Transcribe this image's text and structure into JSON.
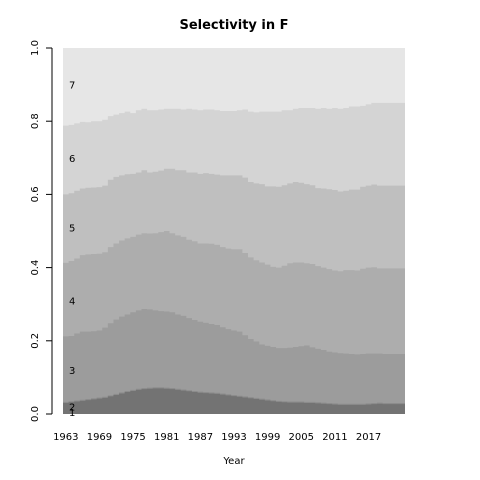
{
  "chart_data": {
    "type": "area",
    "stacked": true,
    "step": true,
    "title": "Selectivity in F",
    "xlabel": "Year",
    "ylabel": "",
    "xlim": [
      1963,
      2024
    ],
    "ylim": [
      0,
      1
    ],
    "x_ticks": [
      1963,
      1969,
      1975,
      1981,
      1987,
      1993,
      1999,
      2005,
      2011,
      2017
    ],
    "y_ticks": [
      "0.0",
      "0.2",
      "0.4",
      "0.6",
      "0.8",
      "1.0"
    ],
    "grid": false,
    "legend": "none",
    "years": [
      1963,
      1964,
      1965,
      1966,
      1967,
      1968,
      1969,
      1970,
      1971,
      1972,
      1973,
      1974,
      1975,
      1976,
      1977,
      1978,
      1979,
      1980,
      1981,
      1982,
      1983,
      1984,
      1985,
      1986,
      1987,
      1988,
      1989,
      1990,
      1991,
      1992,
      1993,
      1994,
      1995,
      1996,
      1997,
      1998,
      1999,
      2000,
      2001,
      2002,
      2003,
      2004,
      2005,
      2006,
      2007,
      2008,
      2009,
      2010,
      2011,
      2012,
      2013,
      2014,
      2015,
      2016,
      2017,
      2018,
      2019,
      2020,
      2021,
      2022,
      2023
    ],
    "cumulative_series": [
      {
        "name": "1",
        "label_at": 0.005,
        "color": "#737373",
        "values": [
          0.03,
          0.032,
          0.034,
          0.036,
          0.038,
          0.04,
          0.042,
          0.044,
          0.048,
          0.052,
          0.056,
          0.06,
          0.063,
          0.066,
          0.068,
          0.069,
          0.07,
          0.07,
          0.069,
          0.068,
          0.066,
          0.064,
          0.062,
          0.06,
          0.058,
          0.057,
          0.056,
          0.055,
          0.053,
          0.051,
          0.049,
          0.047,
          0.045,
          0.043,
          0.041,
          0.039,
          0.037,
          0.035,
          0.033,
          0.032,
          0.031,
          0.031,
          0.031,
          0.03,
          0.03,
          0.029,
          0.028,
          0.027,
          0.026,
          0.025,
          0.025,
          0.025,
          0.025,
          0.025,
          0.026,
          0.027,
          0.028,
          0.027,
          0.027,
          0.027,
          0.027
        ]
      },
      {
        "name": "2",
        "label_at": 0.02,
        "color": "#8c8c8c",
        "values": [
          0.033,
          0.035,
          0.037,
          0.039,
          0.041,
          0.043,
          0.045,
          0.047,
          0.051,
          0.055,
          0.059,
          0.063,
          0.066,
          0.069,
          0.071,
          0.072,
          0.073,
          0.073,
          0.072,
          0.071,
          0.069,
          0.067,
          0.065,
          0.063,
          0.061,
          0.06,
          0.059,
          0.058,
          0.056,
          0.054,
          0.052,
          0.05,
          0.048,
          0.046,
          0.044,
          0.042,
          0.04,
          0.038,
          0.036,
          0.035,
          0.034,
          0.034,
          0.034,
          0.033,
          0.033,
          0.032,
          0.031,
          0.03,
          0.029,
          0.028,
          0.028,
          0.028,
          0.028,
          0.028,
          0.029,
          0.03,
          0.031,
          0.03,
          0.03,
          0.03,
          0.03
        ]
      },
      {
        "name": "3",
        "label_at": 0.12,
        "color": "#9c9c9c",
        "values": [
          0.212,
          0.213,
          0.22,
          0.225,
          0.225,
          0.226,
          0.228,
          0.236,
          0.248,
          0.258,
          0.266,
          0.272,
          0.278,
          0.283,
          0.287,
          0.286,
          0.283,
          0.281,
          0.28,
          0.278,
          0.272,
          0.268,
          0.262,
          0.257,
          0.252,
          0.249,
          0.246,
          0.243,
          0.237,
          0.232,
          0.228,
          0.225,
          0.215,
          0.205,
          0.198,
          0.19,
          0.186,
          0.183,
          0.18,
          0.18,
          0.181,
          0.183,
          0.185,
          0.187,
          0.182,
          0.178,
          0.175,
          0.17,
          0.168,
          0.166,
          0.165,
          0.164,
          0.163,
          0.164,
          0.165,
          0.165,
          0.165,
          0.164,
          0.164,
          0.164,
          0.164
        ]
      },
      {
        "name": "4",
        "label_at": 0.31,
        "color": "#adadad",
        "values": [
          0.413,
          0.418,
          0.425,
          0.434,
          0.436,
          0.437,
          0.438,
          0.442,
          0.456,
          0.466,
          0.474,
          0.48,
          0.484,
          0.49,
          0.494,
          0.493,
          0.494,
          0.497,
          0.5,
          0.494,
          0.488,
          0.484,
          0.476,
          0.472,
          0.466,
          0.466,
          0.465,
          0.462,
          0.456,
          0.452,
          0.45,
          0.45,
          0.44,
          0.428,
          0.42,
          0.414,
          0.408,
          0.402,
          0.4,
          0.405,
          0.412,
          0.414,
          0.414,
          0.412,
          0.41,
          0.404,
          0.4,
          0.396,
          0.392,
          0.39,
          0.393,
          0.393,
          0.392,
          0.397,
          0.4,
          0.401,
          0.398,
          0.398,
          0.398,
          0.398,
          0.398
        ]
      },
      {
        "name": "5",
        "label_at": 0.51,
        "color": "#bfbfbf",
        "values": [
          0.6,
          0.603,
          0.61,
          0.616,
          0.618,
          0.619,
          0.62,
          0.624,
          0.64,
          0.648,
          0.652,
          0.655,
          0.656,
          0.66,
          0.666,
          0.66,
          0.662,
          0.665,
          0.67,
          0.67,
          0.666,
          0.666,
          0.66,
          0.66,
          0.656,
          0.658,
          0.656,
          0.654,
          0.652,
          0.652,
          0.652,
          0.652,
          0.646,
          0.634,
          0.63,
          0.628,
          0.622,
          0.622,
          0.621,
          0.625,
          0.63,
          0.634,
          0.632,
          0.628,
          0.625,
          0.617,
          0.616,
          0.614,
          0.612,
          0.608,
          0.61,
          0.613,
          0.613,
          0.621,
          0.624,
          0.627,
          0.624,
          0.624,
          0.624,
          0.624,
          0.624
        ]
      },
      {
        "name": "6",
        "label_at": 0.7,
        "color": "#d4d4d4",
        "values": [
          0.788,
          0.79,
          0.794,
          0.798,
          0.797,
          0.8,
          0.8,
          0.804,
          0.814,
          0.818,
          0.822,
          0.826,
          0.822,
          0.83,
          0.834,
          0.83,
          0.83,
          0.832,
          0.834,
          0.834,
          0.834,
          0.832,
          0.834,
          0.832,
          0.83,
          0.832,
          0.832,
          0.83,
          0.828,
          0.828,
          0.828,
          0.83,
          0.832,
          0.826,
          0.824,
          0.826,
          0.826,
          0.826,
          0.826,
          0.83,
          0.83,
          0.834,
          0.836,
          0.836,
          0.836,
          0.834,
          0.836,
          0.834,
          0.836,
          0.834,
          0.836,
          0.84,
          0.84,
          0.842,
          0.846,
          0.85,
          0.85,
          0.85,
          0.85,
          0.85,
          0.85
        ]
      },
      {
        "name": "7",
        "label_at": 0.9,
        "color": "#e6e6e6",
        "values": [
          1,
          1,
          1,
          1,
          1,
          1,
          1,
          1,
          1,
          1,
          1,
          1,
          1,
          1,
          1,
          1,
          1,
          1,
          1,
          1,
          1,
          1,
          1,
          1,
          1,
          1,
          1,
          1,
          1,
          1,
          1,
          1,
          1,
          1,
          1,
          1,
          1,
          1,
          1,
          1,
          1,
          1,
          1,
          1,
          1,
          1,
          1,
          1,
          1,
          1,
          1,
          1,
          1,
          1,
          1,
          1,
          1,
          1,
          1,
          1,
          1
        ]
      }
    ]
  }
}
